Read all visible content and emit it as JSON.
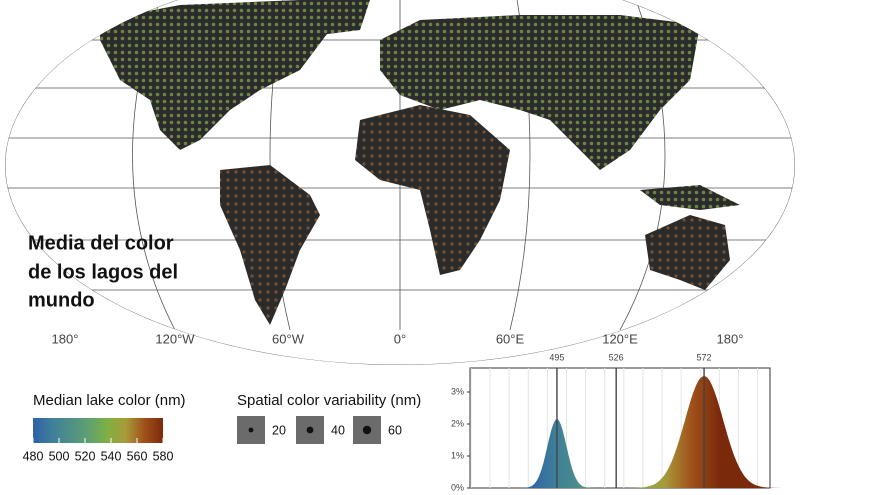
{
  "title": [
    "Media del color",
    "de los lagos del",
    "mundo"
  ],
  "map": {
    "longitude_labels": [
      "180°",
      "120°W",
      "60°W",
      "0°",
      "60°E",
      "120°E",
      "180°"
    ]
  },
  "color_legend": {
    "title": "Median lake color (nm)",
    "ticks": [
      480,
      500,
      520,
      540,
      560,
      580
    ],
    "colors": [
      "#2f5fa8",
      "#3e7f99",
      "#4f8f88",
      "#5fa070",
      "#7fb044",
      "#a89a3a",
      "#a0501a",
      "#7a2a0a"
    ]
  },
  "size_legend": {
    "title": "Spatial color variability (nm)",
    "sizes": [
      20,
      40,
      60
    ]
  },
  "density": {
    "xlim": [
      449.5,
      606.5
    ],
    "ylim": [
      0,
      3.75
    ],
    "yticks": [
      {
        "value": 0,
        "label": "0%"
      },
      {
        "value": 1,
        "label": "1%"
      },
      {
        "value": 2,
        "label": "2%"
      },
      {
        "value": 3,
        "label": "3%"
      }
    ],
    "markers": [
      495,
      526,
      572
    ],
    "curves": [
      {
        "center": 495,
        "peak": 2.15,
        "spread": 5
      },
      {
        "center": 572,
        "peak": 3.5,
        "spread": 10
      }
    ]
  }
}
